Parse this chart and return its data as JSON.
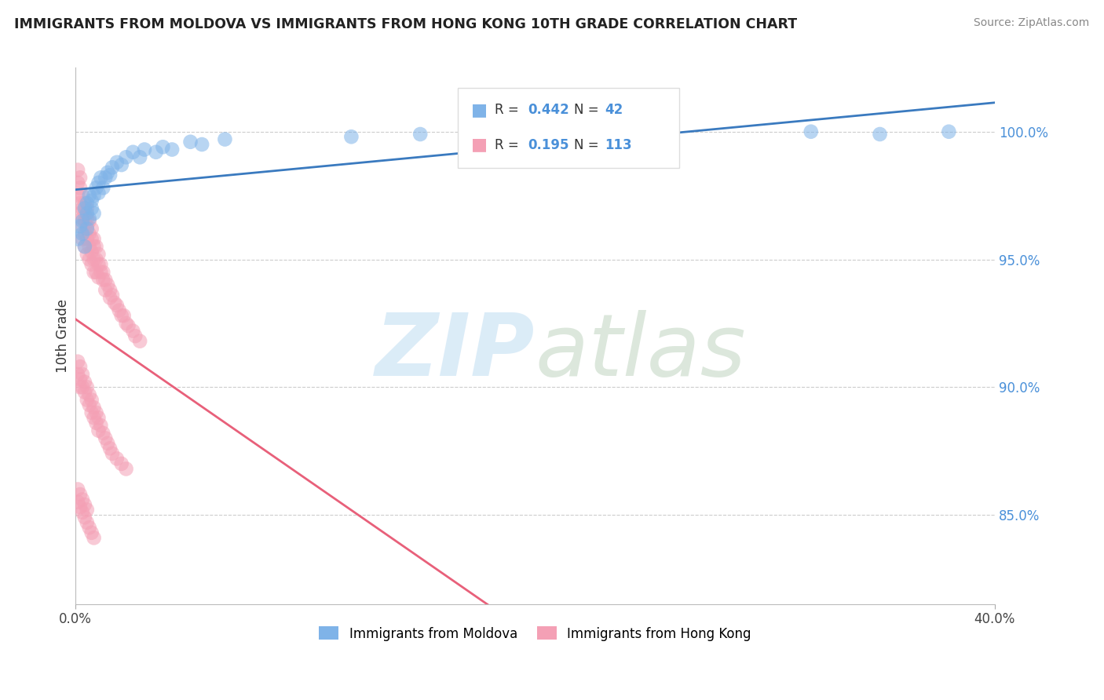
{
  "title": "IMMIGRANTS FROM MOLDOVA VS IMMIGRANTS FROM HONG KONG 10TH GRADE CORRELATION CHART",
  "source": "Source: ZipAtlas.com",
  "ylabel": "10th Grade",
  "ytick_labels": [
    "100.0%",
    "95.0%",
    "90.0%",
    "85.0%"
  ],
  "ytick_positions": [
    1.0,
    0.95,
    0.9,
    0.85
  ],
  "xlim": [
    0.0,
    0.4
  ],
  "ylim": [
    0.815,
    1.025
  ],
  "color_moldova": "#7fb3e8",
  "color_hongkong": "#f4a0b5",
  "line_color_moldova": "#3a7abf",
  "line_color_hongkong": "#e8607a",
  "background_color": "#ffffff",
  "moldova_x": [
    0.001,
    0.002,
    0.003,
    0.003,
    0.004,
    0.004,
    0.005,
    0.005,
    0.005,
    0.006,
    0.006,
    0.007,
    0.007,
    0.008,
    0.008,
    0.009,
    0.01,
    0.01,
    0.011,
    0.012,
    0.013,
    0.014,
    0.015,
    0.016,
    0.018,
    0.02,
    0.022,
    0.025,
    0.028,
    0.03,
    0.035,
    0.038,
    0.042,
    0.05,
    0.055,
    0.065,
    0.12,
    0.15,
    0.25,
    0.32,
    0.35,
    0.38
  ],
  "moldova_y": [
    0.958,
    0.963,
    0.96,
    0.965,
    0.955,
    0.97,
    0.962,
    0.968,
    0.972,
    0.966,
    0.975,
    0.97,
    0.973,
    0.968,
    0.975,
    0.978,
    0.976,
    0.98,
    0.982,
    0.978,
    0.982,
    0.984,
    0.983,
    0.986,
    0.988,
    0.987,
    0.99,
    0.992,
    0.99,
    0.993,
    0.992,
    0.994,
    0.993,
    0.996,
    0.995,
    0.997,
    0.998,
    0.999,
    1.0,
    1.0,
    0.999,
    1.0
  ],
  "hongkong_x": [
    0.001,
    0.001,
    0.001,
    0.002,
    0.002,
    0.002,
    0.002,
    0.003,
    0.003,
    0.003,
    0.003,
    0.003,
    0.004,
    0.004,
    0.004,
    0.004,
    0.004,
    0.005,
    0.005,
    0.005,
    0.005,
    0.005,
    0.006,
    0.006,
    0.006,
    0.006,
    0.007,
    0.007,
    0.007,
    0.007,
    0.008,
    0.008,
    0.008,
    0.008,
    0.009,
    0.009,
    0.009,
    0.01,
    0.01,
    0.01,
    0.011,
    0.011,
    0.012,
    0.012,
    0.013,
    0.013,
    0.014,
    0.015,
    0.015,
    0.016,
    0.017,
    0.018,
    0.019,
    0.02,
    0.021,
    0.022,
    0.023,
    0.025,
    0.026,
    0.028,
    0.001,
    0.001,
    0.002,
    0.002,
    0.002,
    0.003,
    0.003,
    0.004,
    0.004,
    0.005,
    0.005,
    0.006,
    0.006,
    0.007,
    0.007,
    0.008,
    0.008,
    0.009,
    0.009,
    0.01,
    0.01,
    0.011,
    0.012,
    0.013,
    0.014,
    0.015,
    0.016,
    0.018,
    0.02,
    0.022,
    0.001,
    0.001,
    0.002,
    0.002,
    0.003,
    0.003,
    0.004,
    0.004,
    0.005,
    0.005,
    0.006,
    0.007,
    0.008
  ],
  "hongkong_y": [
    0.98,
    0.985,
    0.975,
    0.978,
    0.972,
    0.968,
    0.982,
    0.97,
    0.966,
    0.975,
    0.963,
    0.958,
    0.968,
    0.965,
    0.96,
    0.972,
    0.955,
    0.966,
    0.963,
    0.958,
    0.97,
    0.952,
    0.965,
    0.96,
    0.955,
    0.95,
    0.962,
    0.958,
    0.953,
    0.948,
    0.958,
    0.955,
    0.95,
    0.945,
    0.955,
    0.95,
    0.945,
    0.952,
    0.948,
    0.943,
    0.948,
    0.945,
    0.945,
    0.942,
    0.942,
    0.938,
    0.94,
    0.938,
    0.935,
    0.936,
    0.933,
    0.932,
    0.93,
    0.928,
    0.928,
    0.925,
    0.924,
    0.922,
    0.92,
    0.918,
    0.91,
    0.905,
    0.908,
    0.903,
    0.9,
    0.905,
    0.9,
    0.902,
    0.898,
    0.9,
    0.895,
    0.897,
    0.893,
    0.895,
    0.89,
    0.892,
    0.888,
    0.89,
    0.886,
    0.888,
    0.883,
    0.885,
    0.882,
    0.88,
    0.878,
    0.876,
    0.874,
    0.872,
    0.87,
    0.868,
    0.86,
    0.855,
    0.858,
    0.853,
    0.856,
    0.851,
    0.854,
    0.849,
    0.852,
    0.847,
    0.845,
    0.843,
    0.841
  ]
}
